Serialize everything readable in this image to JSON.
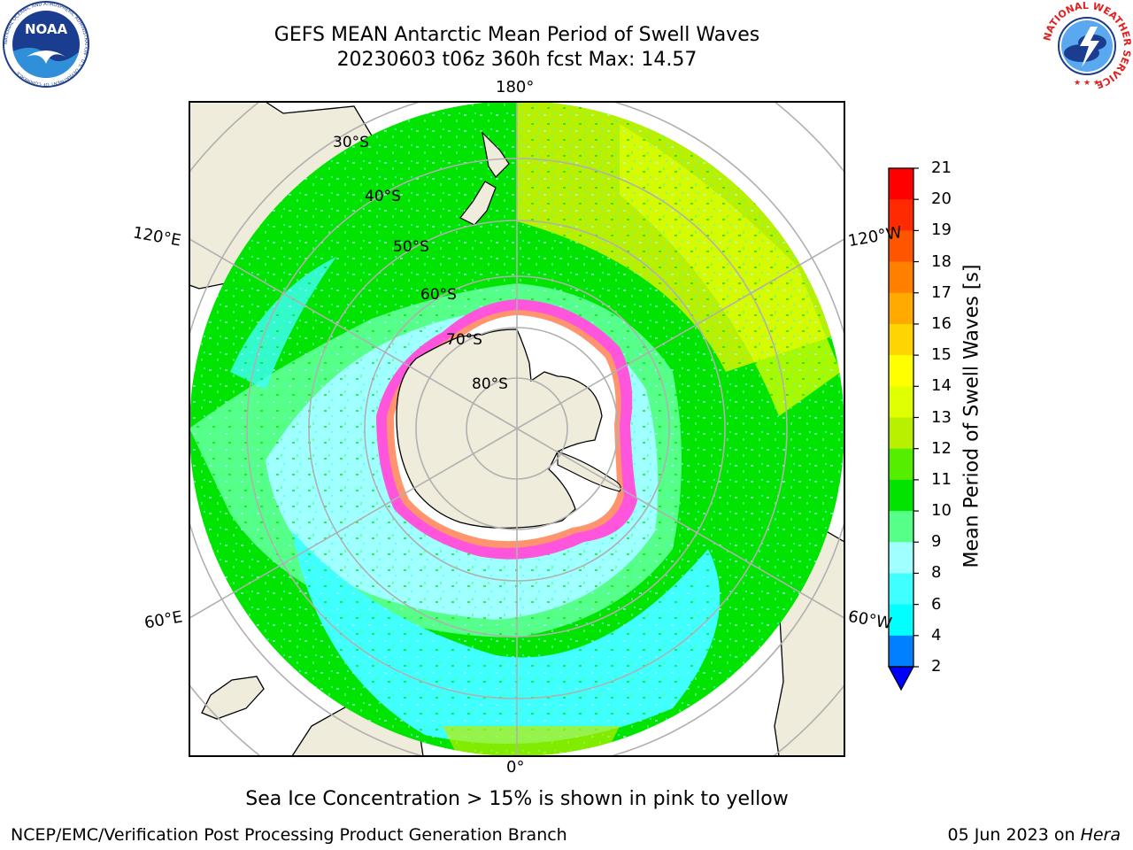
{
  "header": {
    "title_line1": "GEFS MEAN Antarctic Mean Period of Swell Waves",
    "title_line2": "20230603 t06z 360h fcst   Max: 14.57"
  },
  "logos": {
    "noaa_text": "NOAA",
    "noaa_ring_text": "NATIONAL OCEANIC AND ATMOSPHERIC ADMINISTRATION · U.S. DEPARTMENT OF COMMERCE",
    "nws_ring_text": "NATIONAL WEATHER SERVICE"
  },
  "map": {
    "projection": "south-polar-stereographic",
    "longitude_labels": [
      "180°",
      "120°E",
      "120°W",
      "60°E",
      "60°W",
      "0°"
    ],
    "latitude_labels": [
      "30°S",
      "40°S",
      "50°S",
      "60°S",
      "70°S",
      "80°S"
    ],
    "variable": "mean swell wave period",
    "units": "s",
    "field_max": 14.57
  },
  "colorbar": {
    "label": "Mean Period of Swell Waves [s]",
    "ticks": [
      "2",
      "4",
      "6",
      "8",
      "9",
      "10",
      "11",
      "12",
      "13",
      "14",
      "15",
      "16",
      "17",
      "18",
      "19",
      "20",
      "21"
    ],
    "colors": [
      "#0000ff",
      "#0080ff",
      "#00ffff",
      "#40ffff",
      "#a0ffff",
      "#55ff88",
      "#00e400",
      "#55ee00",
      "#b8f000",
      "#e0ff00",
      "#ffff00",
      "#ffd400",
      "#ffaa00",
      "#ff8000",
      "#ff5500",
      "#ff2a00",
      "#ff0000"
    ]
  },
  "note": "Sea Ice Concentration > 15% is shown in pink to yellow",
  "footer": {
    "left": "NCEP/EMC/Verification Post Processing Product Generation Branch",
    "right_date": "05 Jun 2023 on ",
    "right_host": "Hera"
  }
}
